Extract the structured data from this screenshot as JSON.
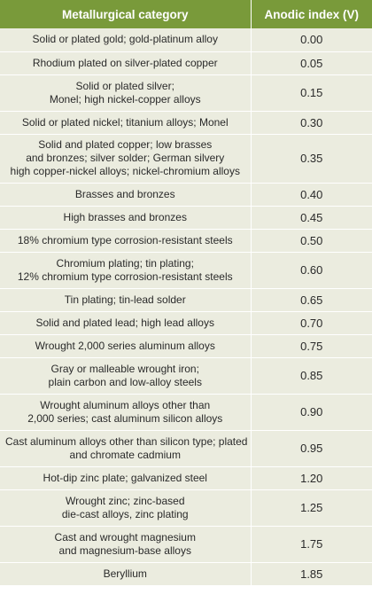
{
  "table": {
    "headers": {
      "category": "Metallurgical category",
      "index": "Anodic index (V)"
    },
    "rows": [
      {
        "lines": [
          "Solid or plated gold; gold-platinum alloy"
        ],
        "value": "0.00"
      },
      {
        "lines": [
          "Rhodium plated on silver-plated copper"
        ],
        "value": "0.05"
      },
      {
        "lines": [
          "Solid or plated silver;",
          "Monel; high nickel-copper alloys"
        ],
        "value": "0.15"
      },
      {
        "lines": [
          "Solid or plated nickel; titanium alloys; Monel"
        ],
        "value": "0.30"
      },
      {
        "lines": [
          "Solid and plated copper; low brasses",
          "and bronzes; silver solder; German silvery",
          "high copper-nickel alloys; nickel-chromium alloys"
        ],
        "value": "0.35"
      },
      {
        "lines": [
          "Brasses and bronzes"
        ],
        "value": "0.40"
      },
      {
        "lines": [
          "High brasses and bronzes"
        ],
        "value": "0.45"
      },
      {
        "lines": [
          "18% chromium type corrosion-resistant steels"
        ],
        "value": "0.50"
      },
      {
        "lines": [
          "Chromium plating; tin plating;",
          "12% chromium type corrosion-resistant steels"
        ],
        "value": "0.60"
      },
      {
        "lines": [
          "Tin plating; tin-lead solder"
        ],
        "value": "0.65"
      },
      {
        "lines": [
          "Solid and plated lead; high lead alloys"
        ],
        "value": "0.70"
      },
      {
        "lines": [
          "Wrought 2,000 series aluminum alloys"
        ],
        "value": "0.75"
      },
      {
        "lines": [
          "Gray or malleable wrought iron;",
          "plain carbon and low-alloy steels"
        ],
        "value": "0.85"
      },
      {
        "lines": [
          "Wrought aluminum alloys other than",
          "2,000 series; cast aluminum silicon alloys"
        ],
        "value": "0.90"
      },
      {
        "lines": [
          "Cast aluminum alloys other than silicon type; plated",
          "and chromate cadmium"
        ],
        "value": "0.95"
      },
      {
        "lines": [
          "Hot-dip zinc plate; galvanized steel"
        ],
        "value": "1.20"
      },
      {
        "lines": [
          "Wrought zinc; zinc-based",
          "die-cast alloys, zinc plating"
        ],
        "value": "1.25"
      },
      {
        "lines": [
          "Cast and wrought magnesium",
          "and magnesium-base alloys"
        ],
        "value": "1.75"
      },
      {
        "lines": [
          "Beryllium"
        ],
        "value": "1.85"
      }
    ],
    "colors": {
      "header_bg": "#799a3a",
      "row_bg": "#ebecdf"
    }
  }
}
